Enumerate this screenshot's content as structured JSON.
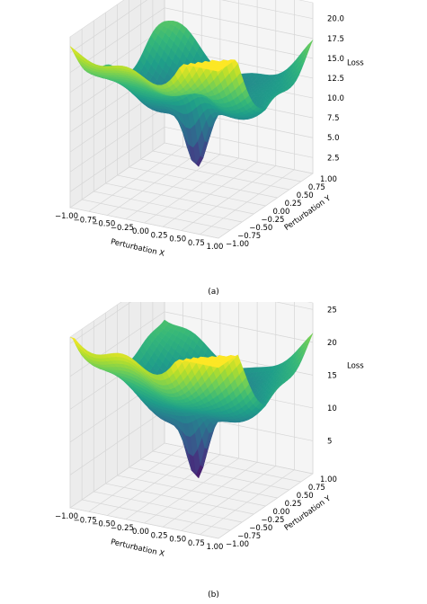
{
  "chart_data": [
    {
      "type": "surface",
      "caption": "(a)",
      "xlabel": "Perturbation X",
      "ylabel": "Perturbation Y",
      "zlabel": "Loss",
      "x_ticks": [
        "−1.00",
        "−0.75",
        "−0.50",
        "−0.25",
        "0.00",
        "0.25",
        "0.50",
        "0.75",
        "1.00"
      ],
      "y_ticks": [
        "−1.00",
        "−0.75",
        "−0.50",
        "−0.25",
        "0.00",
        "0.25",
        "0.50",
        "0.75",
        "1.00"
      ],
      "z_ticks": [
        "2.5",
        "5.0",
        "7.5",
        "10.0",
        "12.5",
        "15.0",
        "17.5",
        "20.0"
      ],
      "z_tick_values": [
        2.5,
        5.0,
        7.5,
        10.0,
        12.5,
        15.0,
        17.5,
        20.0
      ],
      "xlim": [
        -1,
        1
      ],
      "ylim": [
        -1,
        1
      ],
      "zlim": [
        0.5,
        22
      ],
      "colormap": "viridis",
      "grid": true,
      "surface_model": {
        "min_loss": 1.2,
        "max_loss": 21.5,
        "corner_losses": {
          "x-1_y-1": 9.5,
          "x1_y-1": 7.0,
          "x-1_y1": 21.5,
          "x1_y1": 13.0
        }
      }
    },
    {
      "type": "surface",
      "caption": "(b)",
      "xlabel": "Perturbation X",
      "ylabel": "Perturbation Y",
      "zlabel": "Loss",
      "x_ticks": [
        "−1.00",
        "−0.75",
        "−0.50",
        "−0.25",
        "0.00",
        "0.25",
        "0.50",
        "0.75",
        "1.00"
      ],
      "y_ticks": [
        "−1.00",
        "−0.75",
        "−0.50",
        "−0.25",
        "0.00",
        "0.25",
        "0.50",
        "0.75",
        "1.00"
      ],
      "z_ticks": [
        "5",
        "10",
        "15",
        "20",
        "25"
      ],
      "z_tick_values": [
        5,
        10,
        15,
        20,
        25
      ],
      "xlim": [
        -1,
        1
      ],
      "ylim": [
        -1,
        1
      ],
      "zlim": [
        0,
        26
      ],
      "colormap": "viridis",
      "grid": true,
      "surface_model": {
        "min_loss": 0.8,
        "max_loss": 26.0,
        "corner_losses": {
          "x-1_y-1": 16.0,
          "x1_y-1": 10.0,
          "x-1_y1": 26.0,
          "x1_y1": 17.0
        }
      }
    }
  ]
}
